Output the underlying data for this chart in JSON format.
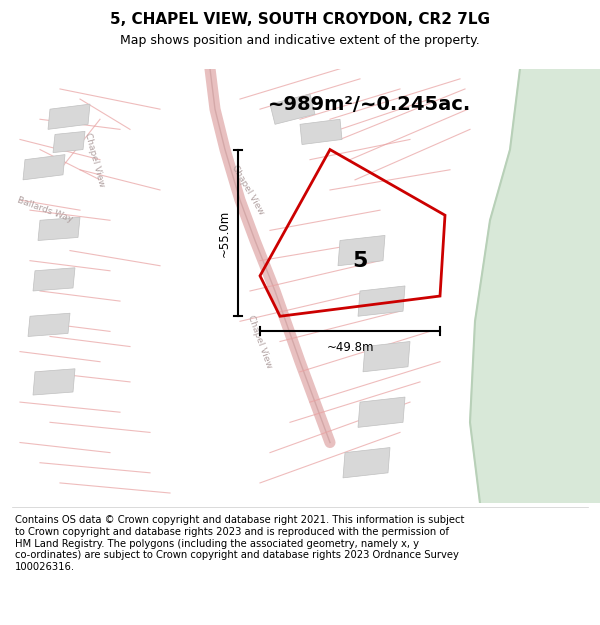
{
  "title": "5, CHAPEL VIEW, SOUTH CROYDON, CR2 7LG",
  "subtitle": "Map shows position and indicative extent of the property.",
  "area_label": "~989m²/~0.245ac.",
  "label_5": "5",
  "dim_vertical": "~55.0m",
  "dim_horizontal": "~49.8m",
  "footer_text": "Contains OS data © Crown copyright and database right 2021. This information is subject\nto Crown copyright and database rights 2023 and is reproduced with the permission of\nHM Land Registry. The polygons (including the associated geometry, namely x, y\nco-ordinates) are subject to Crown copyright and database rights 2023 Ordnance Survey\n100026316.",
  "green_color": "#d8e8d8",
  "line_color": "#e8a0a0",
  "red_polygon": "#cc0000",
  "map_bg": "#f8f7f3"
}
